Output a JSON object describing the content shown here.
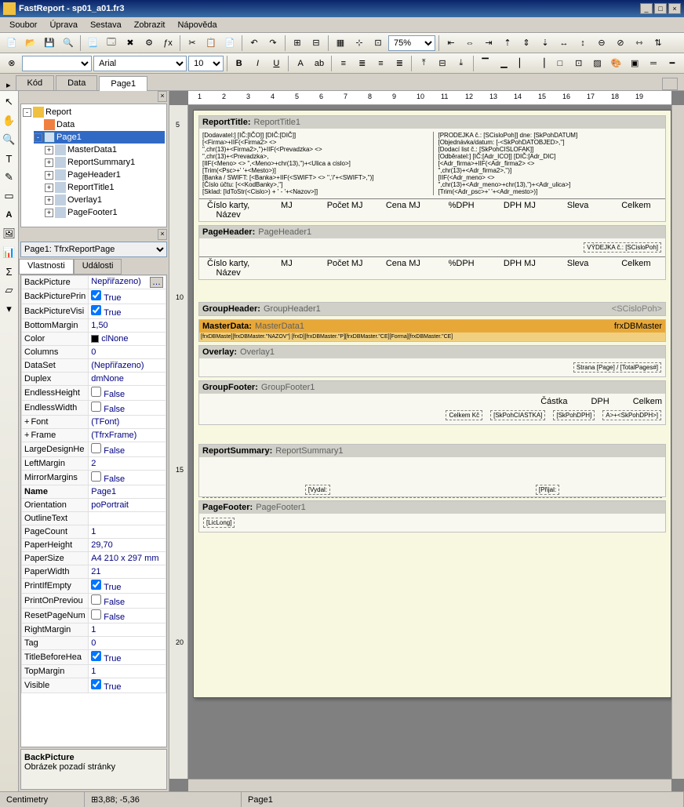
{
  "window": {
    "title": "FastReport - sp01_a01.fr3"
  },
  "menu": [
    "Soubor",
    "Úprava",
    "Sestava",
    "Zobrazit",
    "Nápověda"
  ],
  "toolbar2": {
    "fontName": "Arial",
    "fontSize": "10",
    "zoom": "75%"
  },
  "tabs": [
    "Kód",
    "Data",
    "Page1"
  ],
  "activeTab": 2,
  "tree": {
    "root": "Report",
    "items": [
      {
        "label": "Data",
        "icon": "data",
        "indent": 1
      },
      {
        "label": "Page1",
        "icon": "page",
        "indent": 1,
        "selected": true,
        "expand": "-"
      },
      {
        "label": "MasterData1",
        "icon": "band",
        "indent": 2,
        "expand": "+"
      },
      {
        "label": "ReportSummary1",
        "icon": "band",
        "indent": 2,
        "expand": "+"
      },
      {
        "label": "PageHeader1",
        "icon": "band",
        "indent": 2,
        "expand": "+"
      },
      {
        "label": "ReportTitle1",
        "icon": "band",
        "indent": 2,
        "expand": "+"
      },
      {
        "label": "Overlay1",
        "icon": "band",
        "indent": 2,
        "expand": "+"
      },
      {
        "label": "PageFooter1",
        "icon": "band",
        "indent": 2,
        "expand": "+"
      }
    ]
  },
  "objectCombo": "Page1: TfrxReportPage",
  "propTabs": [
    "Vlastnosti",
    "Události"
  ],
  "properties": [
    {
      "name": "BackPicture",
      "value": "Nepřiřazeno)",
      "btn": true
    },
    {
      "name": "BackPicturePrin",
      "value": "True",
      "check": true
    },
    {
      "name": "BackPictureVisi",
      "value": "True",
      "check": true
    },
    {
      "name": "BottomMargin",
      "value": "1,50"
    },
    {
      "name": "Color",
      "value": "clNone",
      "swatch": "#000000"
    },
    {
      "name": "Columns",
      "value": "0"
    },
    {
      "name": "DataSet",
      "value": "(Nepřiřazeno)"
    },
    {
      "name": "Duplex",
      "value": "dmNone"
    },
    {
      "name": "EndlessHeight",
      "value": "False",
      "check": false
    },
    {
      "name": "EndlessWidth",
      "value": "False",
      "check": false
    },
    {
      "name": "Font",
      "value": "(TFont)",
      "expand": "+"
    },
    {
      "name": "Frame",
      "value": "(TfrxFrame)",
      "expand": "+"
    },
    {
      "name": "LargeDesignHe",
      "value": "False",
      "check": false
    },
    {
      "name": "LeftMargin",
      "value": "2"
    },
    {
      "name": "MirrorMargins",
      "value": "False",
      "check": false
    },
    {
      "name": "Name",
      "value": "Page1",
      "bold": true
    },
    {
      "name": "Orientation",
      "value": "poPortrait"
    },
    {
      "name": "OutlineText",
      "value": ""
    },
    {
      "name": "PageCount",
      "value": "1"
    },
    {
      "name": "PaperHeight",
      "value": "29,70"
    },
    {
      "name": "PaperSize",
      "value": "A4 210 x 297 mm"
    },
    {
      "name": "PaperWidth",
      "value": "21"
    },
    {
      "name": "PrintIfEmpty",
      "value": "True",
      "check": true
    },
    {
      "name": "PrintOnPreviou",
      "value": "False",
      "check": false
    },
    {
      "name": "ResetPageNum",
      "value": "False",
      "check": false
    },
    {
      "name": "RightMargin",
      "value": "1"
    },
    {
      "name": "Tag",
      "value": "0"
    },
    {
      "name": "TitleBeforeHea",
      "value": "True",
      "check": true
    },
    {
      "name": "TopMargin",
      "value": "1"
    },
    {
      "name": "Visible",
      "value": "True",
      "check": true
    }
  ],
  "propDesc": {
    "name": "BackPicture",
    "text": "Obrázek pozadí stránky"
  },
  "ruler": {
    "marks": [
      1,
      2,
      3,
      4,
      5,
      6,
      7,
      8,
      9,
      10,
      11,
      12,
      13,
      14,
      15,
      16,
      17,
      18,
      19
    ]
  },
  "vruler": {
    "marks": [
      5,
      10,
      15,
      20
    ]
  },
  "bands": {
    "reportTitle": {
      "title": "ReportTitle:",
      "desc": "ReportTitle1",
      "left": [
        "[Dodavatel:] [IČ:[IČO]] [DIČ:[DIČ]]",
        "[<Firma>+IIF(<Firma2> <>",
        "\",chr(13)+<Firma2>,'')+IIF(<Prevadzka> <>",
        "\",chr(13)+<Prevadzka>,",
        "[IIF(<Meno> <> '',<Meno>+chr(13),'')+<Ulica a cislo>]",
        "[Trim(<Psc>+' '+<Mesto>)]",
        "",
        "[Banka / SWIFT: [<Banka>+IIF(<SWIFT> <> '','/'+<SWIFT>,'')]",
        "[Číslo účtu: [<<KodBanky>,'']",
        "[Sklad: [IdToStr(<Cislo>) + ' - '+<Nazov>]]"
      ],
      "right": [
        "[PRODEJKA č.: [SCisloPoh]] dne: [SkPohDATUM]",
        "[Objednávka/datum: [-<SkPohDATOBJED>,'']",
        "[Dodací list č.: [SkPohCISLOFAK]]",
        "[Odběratel:] [IČ:[Adr_ICO]] [DIČ:[Adr_DIC]",
        "[<Adr_firma>+IIF(<Adr_firma2> <>",
        "\",chr(13)+<Adr_firma2>,'')]",
        "[IIF(<Adr_meno> <>",
        "\",chr(13)+<Adr_meno>+chr(13),'')+<Adr_ulica>]",
        "[Trim(<Adr_psc>+' '+<Adr_mesto>)]"
      ],
      "cols": [
        "Číslo karty, Název",
        "MJ",
        "Počet MJ",
        "Cena MJ",
        "%DPH",
        "DPH MJ",
        "Sleva",
        "Celkem"
      ]
    },
    "pageHeader": {
      "title": "PageHeader:",
      "desc": "PageHeader1",
      "line": "VÝDEJKA č.: [SCisloPoh]",
      "cols": [
        "Číslo karty, Název",
        "MJ",
        "Počet MJ",
        "Cena MJ",
        "%DPH",
        "DPH MJ",
        "Sleva",
        "Celkem"
      ]
    },
    "groupHeader": {
      "title": "GroupHeader:",
      "desc": "GroupHeader1",
      "right": "<SCisloPoh>"
    },
    "masterData": {
      "title": "MasterData:",
      "desc": "MasterData1",
      "right": "frxDBMaster",
      "row": "[frxDBMaste][frxDBMaster.\"NAZOV\"] [frxD][frxDBMaster.\"P][frxDBMaster.\"CE][Forma][frxDBMaster.\"CE]"
    },
    "overlay": {
      "title": "Overlay:",
      "desc": "Overlay1",
      "text": "Strana [Page] / [TotalPages#]"
    },
    "groupFooter": {
      "title": "GroupFooter:",
      "desc": "GroupFooter1",
      "labels": [
        "Částka",
        "DPH",
        "Celkem"
      ],
      "row2": [
        "Celkem Kč",
        "[SkPohCIASTKA]",
        "[SkPohDPH]",
        "A>+<SkPohDPH>]"
      ]
    },
    "reportSummary": {
      "title": "ReportSummary:",
      "desc": "ReportSummary1",
      "fields": [
        "[Vydal:",
        "[Přijal:"
      ]
    },
    "pageFooter": {
      "title": "PageFooter:",
      "desc": "PageFooter1",
      "text": "[LicLong]"
    }
  },
  "status": {
    "unit": "Centimetry",
    "coords": "3,88; -5,36",
    "page": "Page1"
  }
}
